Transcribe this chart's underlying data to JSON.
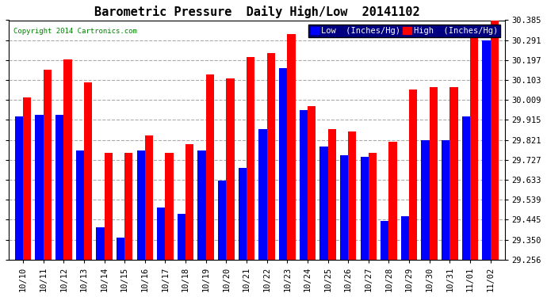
{
  "title": "Barometric Pressure  Daily High/Low  20141102",
  "copyright": "Copyright 2014 Cartronics.com",
  "legend_low": "Low  (Inches/Hg)",
  "legend_high": "High  (Inches/Hg)",
  "dates": [
    "10/10",
    "10/11",
    "10/12",
    "10/13",
    "10/14",
    "10/15",
    "10/16",
    "10/17",
    "10/18",
    "10/19",
    "10/20",
    "10/21",
    "10/22",
    "10/23",
    "10/24",
    "10/25",
    "10/26",
    "10/27",
    "10/28",
    "10/29",
    "10/30",
    "10/31",
    "11/01",
    "11/02"
  ],
  "low_values": [
    29.93,
    29.94,
    29.94,
    29.77,
    29.41,
    29.36,
    29.77,
    29.5,
    29.47,
    29.77,
    29.63,
    29.69,
    29.87,
    30.16,
    29.96,
    29.79,
    29.75,
    29.74,
    29.44,
    29.46,
    29.82,
    29.82,
    29.93,
    30.29
  ],
  "high_values": [
    30.02,
    30.15,
    30.2,
    30.09,
    29.76,
    29.76,
    29.84,
    29.76,
    29.8,
    30.13,
    30.11,
    30.21,
    30.23,
    30.32,
    29.98,
    29.87,
    29.86,
    29.76,
    29.81,
    30.06,
    30.07,
    30.07,
    30.33,
    30.39
  ],
  "ylim_min": 29.256,
  "ylim_max": 30.385,
  "yticks": [
    29.256,
    29.35,
    29.445,
    29.539,
    29.633,
    29.727,
    29.821,
    29.915,
    30.009,
    30.103,
    30.197,
    30.291,
    30.385
  ],
  "bar_color_low": "#0000ff",
  "bar_color_high": "#ff0000",
  "background_color": "#ffffff",
  "grid_color": "#aaaaaa",
  "title_fontsize": 11,
  "tick_fontsize": 7.5,
  "xlabel_fontsize": 7.5,
  "legend_bg": "#000080",
  "legend_fontsize": 7.5
}
